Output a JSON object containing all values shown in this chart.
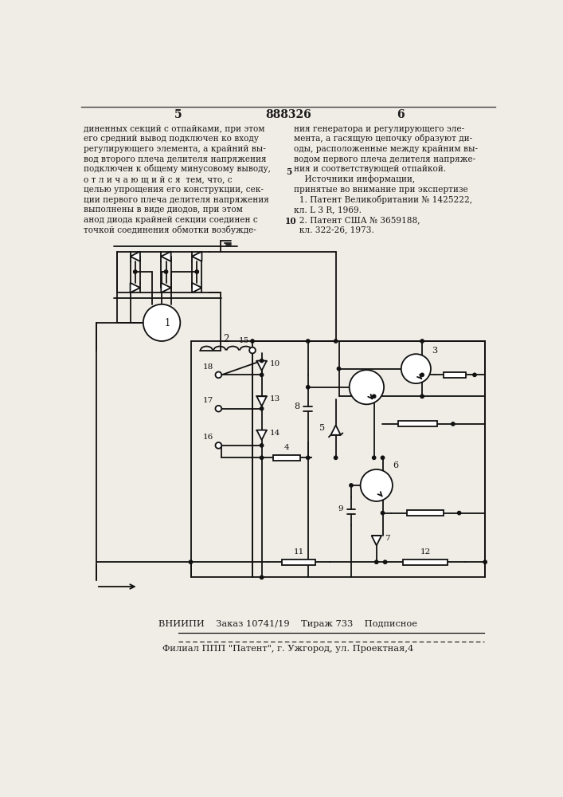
{
  "bg_color": "#f0ede6",
  "text_color": "#1a1a1a",
  "page_number_left": "5",
  "page_number_center": "888326",
  "page_number_right": "6",
  "left_column_text": [
    "диненных секций с отпайками, при этом",
    "его средний вывод подключен ко входу",
    "регулирующего элемента, а крайний вы-",
    "вод второго плеча делителя напряжения",
    "подключен к общему минусовому выводу,",
    "о т л и ч а ю щ и й с я  тем, что, с",
    "целью упрощения его конструкции, сек-",
    "ции первого плеча делителя напряжения",
    "выполнены в виде диодов, при этом",
    "анод диода крайней секции соединен с",
    "точкой соединения обмотки возбужде-"
  ],
  "right_column_text": [
    "ния генератора и регулирующего эле-",
    "мента, а гасящую цепочку образуют ди-",
    "оды, расположенные между крайним вы-",
    "водом первого плеча делителя напряже-",
    "ния и соответствующей отпайкой.",
    "    Источники информации,",
    "принятые во внимание при экспертизе",
    "  1. Патент Великобритании № 1425222,",
    "кл. L 3 R, 1969.",
    "  2. Патент США № 3659188,",
    "  кл. 322-26, 1973."
  ],
  "line_number_5": "5",
  "line_number_10": "10",
  "footer_line1": "ВНИИПИ    Заказ 10741/19    Тираж 733    Подписное",
  "footer_line2": "Филиал ППП \"Патент\", г. Ужгород, ул. Проектная,4"
}
